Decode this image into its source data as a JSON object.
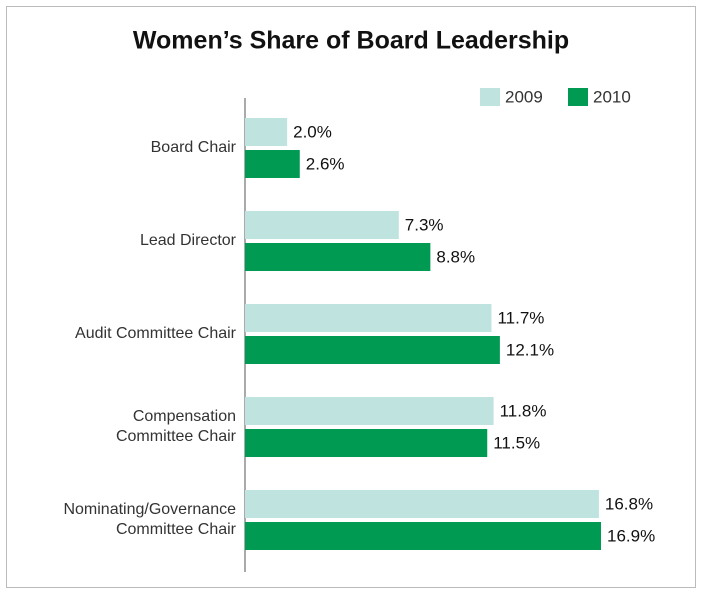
{
  "chart_data": {
    "type": "bar",
    "orientation": "horizontal",
    "title": "Women’s Share of Board Leadership",
    "categories": [
      "Board Chair",
      "Lead Director",
      "Audit Committee Chair",
      "Compensation\nCommittee Chair",
      "Nominating/Governance\nCommittee Chair"
    ],
    "series": [
      {
        "name": "2009",
        "color": "#bfe3de",
        "values": [
          2.0,
          7.3,
          11.7,
          11.8,
          16.8
        ],
        "value_labels": [
          "2.0%",
          "7.3%",
          "11.7%",
          "11.8%",
          "16.8%"
        ]
      },
      {
        "name": "2010",
        "color": "#009a52",
        "values": [
          2.6,
          8.8,
          12.1,
          11.5,
          16.9
        ],
        "value_labels": [
          "2.6%",
          "8.8%",
          "12.1%",
          "11.5%",
          "16.9%"
        ]
      }
    ],
    "legend": "top-right"
  }
}
